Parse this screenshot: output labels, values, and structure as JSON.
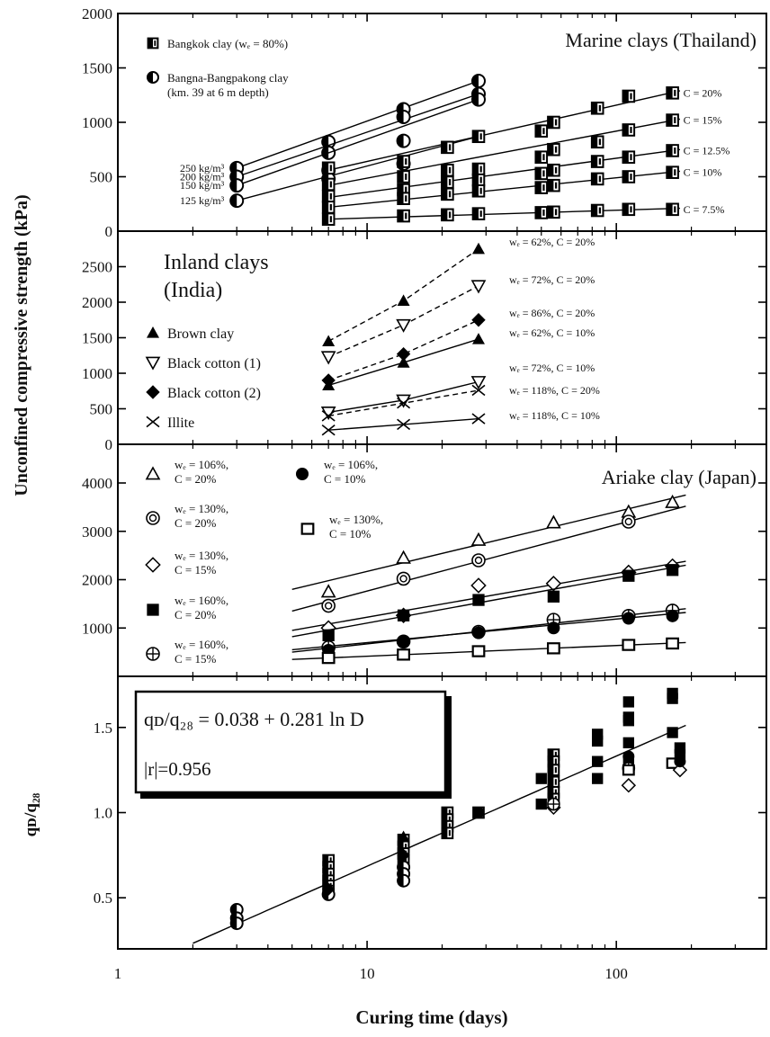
{
  "figure": {
    "ylabel": "Unconfined compressive strength (kPa)",
    "xlabel": "Curing time (days)",
    "x_ticks": [
      "1",
      "10",
      "100"
    ],
    "x_scale": "log",
    "xlim": [
      1,
      400
    ]
  },
  "chart_data": [
    {
      "type": "scatter",
      "title": "Marine clays (Thailand)",
      "ylim": [
        0,
        2000
      ],
      "y_ticks": [
        0,
        500,
        1000,
        1500,
        2000
      ],
      "legend": [
        {
          "marker": "square-half",
          "label": "Bangkok clay (wₑ = 80%)"
        },
        {
          "marker": "circle-half",
          "label": "Bangna-Bangpakong clay",
          "label2": "(km. 39 at 6 m depth)"
        }
      ],
      "series": [
        {
          "marker": "circle-half",
          "note": "250 kg/m³",
          "x": [
            3,
            7,
            14,
            28
          ],
          "y": [
            580,
            820,
            1120,
            1380
          ],
          "fit": [
            [
              3,
              580
            ],
            [
              28,
              1380
            ]
          ],
          "dash": false
        },
        {
          "marker": "circle-half",
          "note": "200 kg/m³",
          "x": [
            3,
            7,
            14,
            28
          ],
          "y": [
            500,
            720,
            1050,
            1260
          ],
          "fit": [
            [
              3,
              500
            ],
            [
              28,
              1260
            ]
          ],
          "dash": false
        },
        {
          "marker": "circle-half",
          "note": "150 kg/m³",
          "x": [
            3,
            7,
            14,
            28
          ],
          "y": [
            420,
            560,
            830,
            1210
          ],
          "fit": [
            [
              3,
              420
            ],
            [
              28,
              1210
            ]
          ],
          "dash": false
        },
        {
          "marker": "circle-half",
          "note": "125 kg/m³",
          "x": [
            3,
            7,
            14
          ],
          "y": [
            280,
            480,
            620
          ],
          "fit": [
            [
              3,
              280
            ],
            [
              28,
              870
            ]
          ],
          "dash": false
        },
        {
          "marker": "square-half",
          "note": "C = 20%",
          "x": [
            7,
            14,
            21,
            28,
            50,
            56,
            84,
            112,
            168
          ],
          "y": [
            580,
            640,
            770,
            870,
            920,
            1000,
            1130,
            1240,
            1270
          ],
          "fit": [
            [
              7,
              560
            ],
            [
              180,
              1290
            ]
          ],
          "dash": false
        },
        {
          "marker": "square-half",
          "note": "C = 15%",
          "x": [
            7,
            14,
            21,
            28,
            50,
            56,
            84,
            112,
            168
          ],
          "y": [
            430,
            500,
            560,
            570,
            680,
            750,
            820,
            930,
            1020
          ],
          "fit": [
            [
              7,
              420
            ],
            [
              180,
              1030
            ]
          ],
          "dash": false
        },
        {
          "marker": "square-half",
          "note": "C = 12.5%",
          "x": [
            7,
            14,
            21,
            28,
            50,
            56,
            84,
            112,
            168
          ],
          "y": [
            320,
            380,
            450,
            470,
            530,
            560,
            640,
            680,
            740
          ],
          "fit": [
            [
              7,
              310
            ],
            [
              180,
              750
            ]
          ],
          "dash": false
        },
        {
          "marker": "square-half",
          "note": "C = 10%",
          "x": [
            7,
            14,
            21,
            28,
            50,
            56,
            84,
            112,
            168
          ],
          "y": [
            220,
            300,
            340,
            370,
            400,
            420,
            480,
            500,
            540
          ],
          "fit": [
            [
              7,
              220
            ],
            [
              180,
              550
            ]
          ],
          "dash": false
        },
        {
          "marker": "square-half",
          "note": "C = 7.5%",
          "x": [
            7,
            14,
            21,
            28,
            50,
            56,
            84,
            112,
            168
          ],
          "y": [
            110,
            140,
            150,
            160,
            170,
            175,
            190,
            200,
            200
          ],
          "fit": [
            [
              7,
              110
            ],
            [
              180,
              210
            ]
          ],
          "dash": false
        }
      ]
    },
    {
      "type": "scatter",
      "title": "Inland clays",
      "title2": "(India)",
      "ylim": [
        0,
        3000
      ],
      "y_ticks": [
        0,
        500,
        1000,
        1500,
        2000,
        2500
      ],
      "legend": [
        {
          "marker": "triangle-filled",
          "label": "Brown clay"
        },
        {
          "marker": "triangle-down-open",
          "label": "Black cotton (1)"
        },
        {
          "marker": "diamond-filled",
          "label": "Black cotton (2)"
        },
        {
          "marker": "x",
          "label": "Illite"
        }
      ],
      "series": [
        {
          "marker": "triangle-filled",
          "note": "wₑ = 62%, C = 20%",
          "x": [
            7,
            14,
            28
          ],
          "y": [
            1450,
            2020,
            2750
          ],
          "dash": true
        },
        {
          "marker": "triangle-down-open",
          "note": "wₑ = 72%, C = 20%",
          "x": [
            7,
            14,
            28
          ],
          "y": [
            1230,
            1680,
            2230
          ],
          "dash": true
        },
        {
          "marker": "diamond-filled",
          "note": "wₑ = 86%, C = 20%",
          "x": [
            7,
            14,
            28
          ],
          "y": [
            900,
            1270,
            1750
          ],
          "dash": true
        },
        {
          "marker": "triangle-filled",
          "note": "wₑ = 62%, C = 10%",
          "x": [
            7,
            14,
            28
          ],
          "y": [
            830,
            1150,
            1480
          ],
          "dash": false
        },
        {
          "marker": "triangle-down-open",
          "note": "wₑ = 72%, C = 10%",
          "x": [
            7,
            14,
            28
          ],
          "y": [
            450,
            620,
            880
          ],
          "dash": false
        },
        {
          "marker": "x",
          "note": "wₑ = 118%, C = 20%",
          "x": [
            7,
            14,
            28
          ],
          "y": [
            400,
            580,
            760
          ],
          "dash": true
        },
        {
          "marker": "x",
          "note": "wₑ = 118%, C = 10%",
          "x": [
            7,
            14,
            28
          ],
          "y": [
            200,
            280,
            360
          ],
          "dash": false
        }
      ]
    },
    {
      "type": "scatter",
      "title": "Ariake clay (Japan)",
      "ylim": [
        0,
        4800
      ],
      "y_ticks": [
        1000,
        2000,
        3000,
        4000
      ],
      "legend": [
        {
          "marker": "triangle-open",
          "l1": "wₑ = 106%,",
          "l2": "C = 20%"
        },
        {
          "marker": "circle-dot",
          "l1": "wₑ = 130%,",
          "l2": "C = 20%"
        },
        {
          "marker": "diamond-open",
          "l1": "wₑ = 130%,",
          "l2": "C = 15%"
        },
        {
          "marker": "square-filled",
          "l1": "wₑ = 160%,",
          "l2": "C = 20%"
        },
        {
          "marker": "circle-plus",
          "l1": "wₑ = 160%,",
          "l2": "C = 15%"
        },
        {
          "marker": "circle-filled",
          "l1": "wₑ = 106%,",
          "l2": "C = 10%"
        },
        {
          "marker": "square-open",
          "l1": "wₑ = 130%,",
          "l2": "C = 10%"
        }
      ],
      "series": [
        {
          "marker": "triangle-open",
          "x": [
            7,
            14,
            28,
            56,
            112,
            168
          ],
          "y": [
            1750,
            2450,
            2820,
            3180,
            3400,
            3600
          ],
          "fit": [
            [
              5,
              1800
            ],
            [
              190,
              3750
            ]
          ],
          "dash": false
        },
        {
          "marker": "circle-dot",
          "x": [
            7,
            14,
            28,
            112
          ],
          "y": [
            1460,
            2020,
            2400,
            3200
          ],
          "fit": [
            [
              5,
              1350
            ],
            [
              190,
              3520
            ]
          ],
          "dash": false
        },
        {
          "marker": "diamond-open",
          "x": [
            7,
            14,
            28,
            56,
            112,
            168
          ],
          "y": [
            1000,
            1260,
            1880,
            1920,
            2150,
            2280
          ],
          "fit": [
            [
              5,
              950
            ],
            [
              190,
              2380
            ]
          ],
          "dash": false
        },
        {
          "marker": "square-filled",
          "x": [
            7,
            14,
            28,
            56,
            112,
            168
          ],
          "y": [
            850,
            1260,
            1580,
            1650,
            2080,
            2200
          ],
          "fit": [
            [
              5,
              820
            ],
            [
              190,
              2300
            ]
          ],
          "dash": false
        },
        {
          "marker": "circle-plus",
          "x": [
            7,
            14,
            28,
            56,
            112,
            168
          ],
          "y": [
            600,
            720,
            920,
            1170,
            1250,
            1360
          ],
          "fit": [
            [
              5,
              500
            ],
            [
              190,
              1400
            ]
          ],
          "dash": false
        },
        {
          "marker": "circle-filled",
          "x": [
            7,
            14,
            28,
            56,
            112,
            168
          ],
          "y": [
            540,
            720,
            900,
            1000,
            1200,
            1250
          ],
          "fit": [
            [
              5,
              550
            ],
            [
              190,
              1320
            ]
          ],
          "dash": false
        },
        {
          "marker": "square-open",
          "x": [
            7,
            14,
            28,
            56,
            112,
            168
          ],
          "y": [
            380,
            450,
            520,
            580,
            650,
            680
          ],
          "fit": [
            [
              5,
              350
            ],
            [
              190,
              700
            ]
          ],
          "dash": false
        }
      ]
    },
    {
      "type": "scatter",
      "ylabel": "qᴅ/q₂₈",
      "ylim": [
        0.2,
        1.8
      ],
      "y_ticks": [
        "0.5",
        "1.0",
        "1.5"
      ],
      "equation": "qᴅ/q₂₈ = 0.038 + 0.281 ln D",
      "r_label": "|r|=0.956",
      "fit": {
        "a": 0.038,
        "b": 0.281,
        "xmin": 2,
        "xmax": 190
      },
      "points": [
        {
          "marker": "circle-half",
          "x": 3,
          "y": 0.43
        },
        {
          "marker": "circle-half",
          "x": 3,
          "y": 0.38
        },
        {
          "marker": "circle-half",
          "x": 3,
          "y": 0.35
        },
        {
          "marker": "square-half",
          "x": 7,
          "y": 0.72
        },
        {
          "marker": "square-half",
          "x": 7,
          "y": 0.68
        },
        {
          "marker": "square-half",
          "x": 7,
          "y": 0.64
        },
        {
          "marker": "square-half",
          "x": 7,
          "y": 0.6
        },
        {
          "marker": "square-half",
          "x": 7,
          "y": 0.57
        },
        {
          "marker": "square-half",
          "x": 7,
          "y": 0.54
        },
        {
          "marker": "circle-half",
          "x": 7,
          "y": 0.52
        },
        {
          "marker": "diamond-filled",
          "x": 7,
          "y": 0.55
        },
        {
          "marker": "square-half",
          "x": 14,
          "y": 0.84
        },
        {
          "marker": "square-half",
          "x": 14,
          "y": 0.8
        },
        {
          "marker": "square-half",
          "x": 14,
          "y": 0.76
        },
        {
          "marker": "square-half",
          "x": 14,
          "y": 0.72
        },
        {
          "marker": "circle-half",
          "x": 14,
          "y": 0.68
        },
        {
          "marker": "circle-half",
          "x": 14,
          "y": 0.64
        },
        {
          "marker": "circle-half",
          "x": 14,
          "y": 0.6
        },
        {
          "marker": "triangle-filled",
          "x": 14,
          "y": 0.86
        },
        {
          "marker": "diamond-filled",
          "x": 14,
          "y": 0.75
        },
        {
          "marker": "square-half",
          "x": 21,
          "y": 1.0
        },
        {
          "marker": "square-half",
          "x": 21,
          "y": 0.96
        },
        {
          "marker": "square-half",
          "x": 21,
          "y": 0.92
        },
        {
          "marker": "square-half",
          "x": 21,
          "y": 0.88
        },
        {
          "marker": "square-half",
          "x": 28,
          "y": 1.0
        },
        {
          "marker": "circle-filled",
          "x": 28,
          "y": 1.0
        },
        {
          "marker": "square-filled",
          "x": 50,
          "y": 1.2
        },
        {
          "marker": "square-filled",
          "x": 50,
          "y": 1.05
        },
        {
          "marker": "square-half",
          "x": 56,
          "y": 1.34
        },
        {
          "marker": "square-half",
          "x": 56,
          "y": 1.3
        },
        {
          "marker": "square-half",
          "x": 56,
          "y": 1.25
        },
        {
          "marker": "square-half",
          "x": 56,
          "y": 1.18
        },
        {
          "marker": "square-half",
          "x": 56,
          "y": 1.12
        },
        {
          "marker": "square-half",
          "x": 56,
          "y": 1.08
        },
        {
          "marker": "diamond-open",
          "x": 56,
          "y": 1.03
        },
        {
          "marker": "circle-plus",
          "x": 56,
          "y": 1.05
        },
        {
          "marker": "square-filled",
          "x": 84,
          "y": 1.46
        },
        {
          "marker": "square-filled",
          "x": 84,
          "y": 1.42
        },
        {
          "marker": "square-filled",
          "x": 84,
          "y": 1.3
        },
        {
          "marker": "square-filled",
          "x": 84,
          "y": 1.2
        },
        {
          "marker": "square-filled",
          "x": 112,
          "y": 1.65
        },
        {
          "marker": "square-filled",
          "x": 112,
          "y": 1.56
        },
        {
          "marker": "square-filled",
          "x": 112,
          "y": 1.54
        },
        {
          "marker": "square-filled",
          "x": 112,
          "y": 1.41
        },
        {
          "marker": "square-filled",
          "x": 112,
          "y": 1.3
        },
        {
          "marker": "circle-plus",
          "x": 112,
          "y": 1.26
        },
        {
          "marker": "square-open",
          "x": 112,
          "y": 1.25
        },
        {
          "marker": "diamond-open",
          "x": 112,
          "y": 1.16
        },
        {
          "marker": "circle-filled",
          "x": 112,
          "y": 1.33
        },
        {
          "marker": "square-filled",
          "x": 168,
          "y": 1.7
        },
        {
          "marker": "square-filled",
          "x": 168,
          "y": 1.67
        },
        {
          "marker": "square-filled",
          "x": 168,
          "y": 1.47
        },
        {
          "marker": "square-open",
          "x": 168,
          "y": 1.29
        },
        {
          "marker": "square-filled",
          "x": 180,
          "y": 1.38
        },
        {
          "marker": "square-filled",
          "x": 180,
          "y": 1.34
        },
        {
          "marker": "diamond-open",
          "x": 180,
          "y": 1.25
        },
        {
          "marker": "circle-filled",
          "x": 180,
          "y": 1.3
        }
      ]
    }
  ]
}
